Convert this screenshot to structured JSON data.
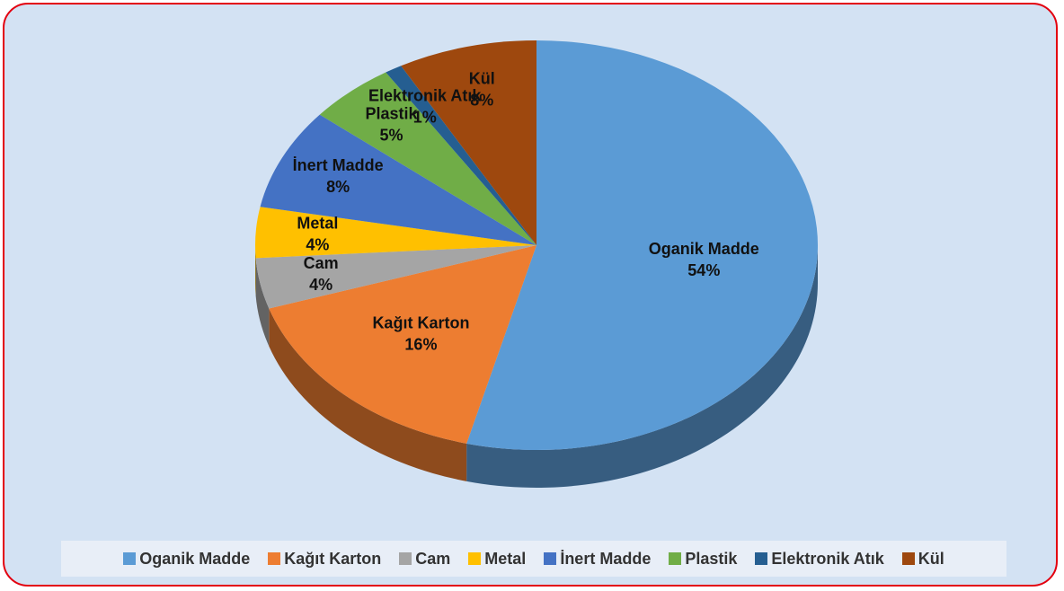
{
  "chart_data": {
    "type": "pie",
    "categories": [
      "Oganik Madde",
      "Kağıt Karton",
      "Cam",
      "Metal",
      "İnert Madde",
      "Plastik",
      "Elektronik Atık",
      "Kül"
    ],
    "values": [
      54,
      16,
      4,
      4,
      8,
      5,
      1,
      8
    ],
    "value_labels": [
      "54%",
      "16%",
      "4%",
      "4%",
      "8%",
      "5%",
      "1%",
      "8%"
    ],
    "colors": [
      "#5b9bd5",
      "#ed7d31",
      "#a5a5a5",
      "#ffc000",
      "#4472c4",
      "#70ad47",
      "#255e91",
      "#9e480e"
    ],
    "legend": "bottom"
  }
}
